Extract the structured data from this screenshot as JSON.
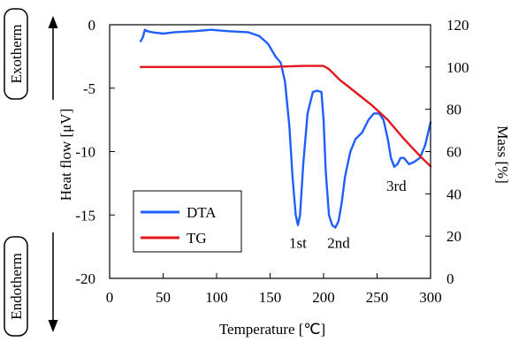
{
  "chart_data": {
    "type": "line",
    "xlabel": "Temperature [℃]",
    "ylabel_left": "Heat flow [μV]",
    "ylabel_right": "Mass [%]",
    "xlim": [
      0,
      300
    ],
    "ylim_left": [
      -20,
      0
    ],
    "ylim_right": [
      0,
      120
    ],
    "xticks": [
      0,
      50,
      100,
      150,
      200,
      250,
      300
    ],
    "yticks_left": [
      0,
      -5,
      -10,
      -15,
      -20
    ],
    "yticks_right": [
      0,
      20,
      40,
      60,
      80,
      100,
      120
    ],
    "grid": false,
    "legend_position": "bottom-left",
    "side_labels": {
      "top": "Exotherm",
      "bottom": "Endotherm"
    },
    "annotations": [
      {
        "text": "1st",
        "x": 176,
        "y": -17.6
      },
      {
        "text": "2nd",
        "x": 214,
        "y": -17.6
      },
      {
        "text": "3rd",
        "x": 268,
        "y": -13.1
      }
    ],
    "series": [
      {
        "name": "DTA",
        "axis": "left",
        "color": "#1f5fff",
        "x": [
          29,
          31,
          33,
          35,
          40,
          50,
          60,
          80,
          95,
          110,
          130,
          140,
          148,
          155,
          160,
          164,
          168,
          171,
          174,
          176,
          178,
          181,
          185,
          190,
          194,
          198,
          200,
          202,
          205,
          208,
          211,
          214,
          217,
          220,
          225,
          230,
          236,
          242,
          247,
          252,
          256,
          260,
          263,
          266,
          269,
          272,
          275,
          280,
          285,
          290,
          295,
          300
        ],
        "y": [
          -1.3,
          -1.0,
          -0.4,
          -0.5,
          -0.6,
          -0.7,
          -0.6,
          -0.5,
          -0.4,
          -0.5,
          -0.6,
          -0.9,
          -1.5,
          -2.5,
          -3.0,
          -4.5,
          -8.0,
          -12.0,
          -15.0,
          -15.8,
          -15.0,
          -11.0,
          -7.0,
          -5.3,
          -5.2,
          -5.3,
          -7.5,
          -11.5,
          -15.0,
          -15.8,
          -16.0,
          -15.5,
          -14.0,
          -12.0,
          -10.0,
          -9.0,
          -8.5,
          -7.5,
          -7.0,
          -7.0,
          -7.5,
          -9.0,
          -10.5,
          -11.2,
          -11.0,
          -10.5,
          -10.5,
          -11.0,
          -10.8,
          -10.5,
          -9.5,
          -7.7
        ]
      },
      {
        "name": "TG",
        "axis": "right",
        "color": "#e5141b",
        "x": [
          29,
          100,
          150,
          180,
          200,
          205,
          215,
          230,
          245,
          260,
          275,
          290,
          300
        ],
        "y": [
          100,
          100,
          100,
          100.5,
          100.5,
          99,
          94,
          88,
          82,
          75,
          66,
          58,
          53
        ]
      }
    ]
  }
}
